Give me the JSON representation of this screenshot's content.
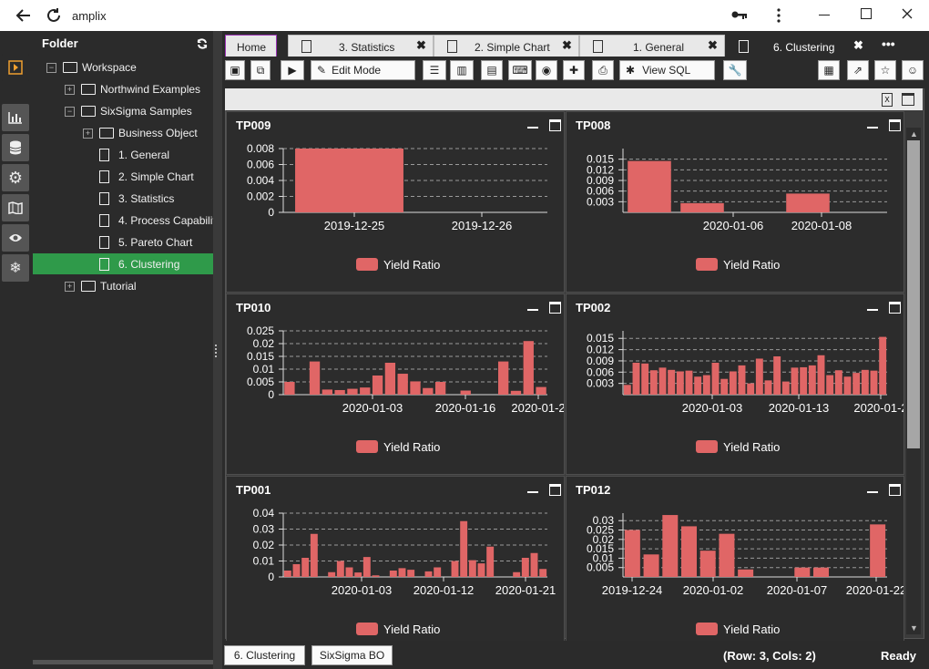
{
  "window": {
    "title": "amplix"
  },
  "sidebar": {
    "heading": "Folder",
    "items": [
      {
        "label": "Workspace"
      },
      {
        "label": "Northwind Examples"
      },
      {
        "label": "SixSigma Samples"
      },
      {
        "label": "Business Object"
      },
      {
        "label": "1. General"
      },
      {
        "label": "2. Simple Chart"
      },
      {
        "label": "3. Statistics"
      },
      {
        "label": "4. Process Capability"
      },
      {
        "label": "5. Pareto Chart"
      },
      {
        "label": "6. Clustering"
      },
      {
        "label": "Tutorial"
      }
    ]
  },
  "tabs": [
    {
      "label": "Home"
    },
    {
      "label": "3. Statistics"
    },
    {
      "label": "2. Simple Chart"
    },
    {
      "label": "1. General"
    },
    {
      "label": "6. Clustering"
    }
  ],
  "toolbar": {
    "edit_mode": "Edit Mode",
    "view_sql": "View SQL"
  },
  "status": {
    "tab1": "6. Clustering",
    "tab2": "SixSigma BO",
    "grid": "(Row: 3, Cols: 2)",
    "state": "Ready"
  },
  "colors": {
    "bar": "#e06666",
    "panel_bg": "#2c2c2c",
    "selected": "#2f9a4a"
  },
  "chart_data": [
    {
      "type": "bar",
      "title": "TP009",
      "yticks": [
        "0.008",
        "0.006",
        "0.004",
        "0.002",
        "0"
      ],
      "ylim": [
        0,
        0.008
      ],
      "xticks": [
        "2019-12-25",
        "2019-12-26"
      ],
      "legend": "Yield Ratio",
      "values": [
        0.008,
        0
      ]
    },
    {
      "type": "bar",
      "title": "TP008",
      "yticks": [
        "0.015",
        "0.012",
        "0.009",
        "0.006",
        "0.003"
      ],
      "ylim": [
        0,
        0.018
      ],
      "xticks": [
        "2020-01-06",
        "2020-01-08"
      ],
      "legend": "Yield Ratio",
      "values": [
        0.0145,
        0.0026,
        0,
        0.0053,
        0
      ]
    },
    {
      "type": "bar",
      "title": "TP010",
      "yticks": [
        "0.025",
        "0.02",
        "0.015",
        "0.01",
        "0.005",
        "0"
      ],
      "ylim": [
        0,
        0.025
      ],
      "xticks": [
        "2020-01-03",
        "2020-01-16",
        "2020-01-2"
      ],
      "legend": "Yield Ratio",
      "values": [
        0.005,
        0,
        0.013,
        0.002,
        0.0018,
        0.0023,
        0.0028,
        0.0075,
        0.0125,
        0.0082,
        0.0052,
        0.0026,
        0.005,
        0,
        0.0016,
        0,
        0,
        0.013,
        0.0015,
        0.021,
        0.003
      ]
    },
    {
      "type": "bar",
      "title": "TP002",
      "yticks": [
        "0.015",
        "0.012",
        "0.009",
        "0.006",
        "0.003"
      ],
      "ylim": [
        0,
        0.017
      ],
      "xticks": [
        "2020-01-03",
        "2020-01-13",
        "2020-01-2"
      ],
      "legend": "Yield Ratio",
      "values": [
        0.0026,
        0.0085,
        0.0083,
        0.0065,
        0.0072,
        0.0066,
        0.0062,
        0.0064,
        0.0048,
        0.0052,
        0.0085,
        0.0042,
        0.0062,
        0.0078,
        0.003,
        0.0096,
        0.0038,
        0.0102,
        0.0035,
        0.0072,
        0.0073,
        0.0078,
        0.0105,
        0.0052,
        0.0065,
        0.0048,
        0.0058,
        0.0066,
        0.0064,
        0.0154
      ]
    },
    {
      "type": "bar",
      "title": "TP001",
      "yticks": [
        "0.04",
        "0.03",
        "0.02",
        "0.01",
        "0"
      ],
      "ylim": [
        0,
        0.04
      ],
      "xticks": [
        "2020-01-03",
        "2020-01-12",
        "2020-01-21"
      ],
      "legend": "Yield Ratio",
      "values": [
        0.004,
        0.008,
        0.012,
        0.027,
        0,
        0.003,
        0.01,
        0.006,
        0.0028,
        0.0125,
        0.001,
        0,
        0.004,
        0.0055,
        0.0045,
        0,
        0.0035,
        0.006,
        0,
        0.01,
        0.035,
        0.0105,
        0.0085,
        0.019,
        0,
        0,
        0.003,
        0.012,
        0.015,
        0.005
      ]
    },
    {
      "type": "bar",
      "title": "TP012",
      "yticks": [
        "0.03",
        "0.025",
        "0.02",
        "0.015",
        "0.01",
        "0.005"
      ],
      "ylim": [
        0,
        0.034
      ],
      "xticks": [
        "2019-12-24",
        "2020-01-02",
        "2020-01-07",
        "2020-01-22"
      ],
      "legend": "Yield Ratio",
      "values": [
        0.025,
        0.012,
        0.033,
        0.027,
        0.014,
        0.023,
        0.004,
        0,
        0,
        0.005,
        0.005,
        0,
        0,
        0.028
      ]
    }
  ]
}
